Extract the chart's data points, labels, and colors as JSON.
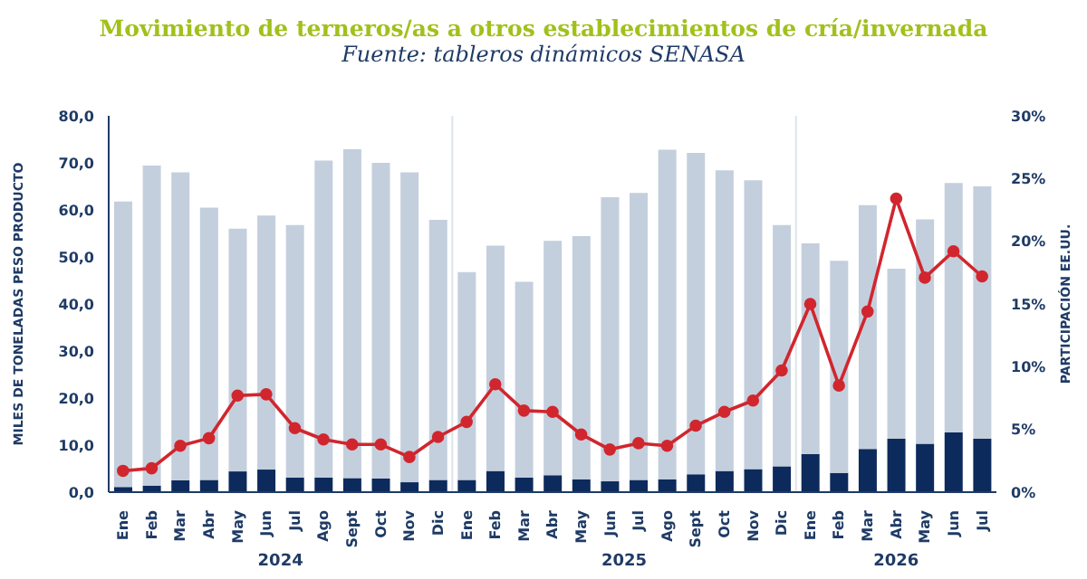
{
  "chart_data": {
    "type": "bar",
    "stacked": true,
    "title": "Movimiento de terneros/as a otros establecimientos de cría/invernada",
    "subtitle": "Fuente: tableros dinámicos SENASA",
    "ylabel": "MILES DE TONELADAS PESO PRODUCTO",
    "y2label": "PARTICIPACIÓN EE.UU.",
    "x": [
      "2024-01",
      "2024-02",
      "2024-03",
      "2024-04",
      "2024-05",
      "2024-06",
      "2024-07",
      "2024-08",
      "2024-09",
      "2024-10",
      "2024-11",
      "2024-12",
      "2025-01",
      "2025-02",
      "2025-03",
      "2025-04",
      "2025-05",
      "2025-06",
      "2025-07",
      "2025-08",
      "2025-09",
      "2025-10",
      "2025-11",
      "2025-12",
      "2026-01",
      "2026-02",
      "2026-03",
      "2026-04",
      "2026-05",
      "2026-06",
      "2026-07"
    ],
    "xlim": [
      "2023-12-16",
      "2026-07-16"
    ],
    "xticks": [
      {
        "value": "2024-01",
        "label": "Ene"
      },
      {
        "value": "2024-02",
        "label": "Feb"
      },
      {
        "value": "2024-03",
        "label": "Mar"
      },
      {
        "value": "2024-04",
        "label": "Abr"
      },
      {
        "value": "2024-05",
        "label": "May"
      },
      {
        "value": "2024-06",
        "label": "Jun"
      },
      {
        "value": "2024-07",
        "label": "Jul"
      },
      {
        "value": "2024-08",
        "label": "Ago"
      },
      {
        "value": "2024-09",
        "label": "Sept"
      },
      {
        "value": "2024-10",
        "label": "Oct"
      },
      {
        "value": "2024-11",
        "label": "Nov"
      },
      {
        "value": "2024-12",
        "label": "Dic"
      },
      {
        "value": "2025-01",
        "label": "Ene"
      },
      {
        "value": "2025-02",
        "label": "Feb"
      },
      {
        "value": "2025-03",
        "label": "Mar"
      },
      {
        "value": "2025-04",
        "label": "Abr"
      },
      {
        "value": "2025-05",
        "label": "May"
      },
      {
        "value": "2025-06",
        "label": "Jun"
      },
      {
        "value": "2025-07",
        "label": "Jul"
      },
      {
        "value": "2025-08",
        "label": "Ago"
      },
      {
        "value": "2025-09",
        "label": "Sept"
      },
      {
        "value": "2025-10",
        "label": "Oct"
      },
      {
        "value": "2025-11",
        "label": "Nov"
      },
      {
        "value": "2025-12",
        "label": "Dic"
      },
      {
        "value": "2026-01",
        "label": "Ene"
      },
      {
        "value": "2026-02",
        "label": "Feb"
      },
      {
        "value": "2026-03",
        "label": "Mar"
      },
      {
        "value": "2026-04",
        "label": "Abr"
      },
      {
        "value": "2026-05",
        "label": "May"
      },
      {
        "value": "2026-06",
        "label": "Jun"
      },
      {
        "value": "2026-07",
        "label": "Jul"
      }
    ],
    "ylim": [
      0,
      80
    ],
    "yticks": [
      {
        "value": 0,
        "label": "0,0"
      },
      {
        "value": 10,
        "label": "10,0"
      },
      {
        "value": 20,
        "label": "20,0"
      },
      {
        "value": 30,
        "label": "30,0"
      },
      {
        "value": 40,
        "label": "40,0"
      },
      {
        "value": 50,
        "label": "50,0"
      },
      {
        "value": 60,
        "label": "60,0"
      },
      {
        "value": 70,
        "label": "70,0"
      },
      {
        "value": 80,
        "label": "80,0"
      }
    ],
    "y2lim": [
      0,
      30
    ],
    "y2ticks": [
      {
        "value": 0,
        "label": "0%"
      },
      {
        "value": 5,
        "label": "5%"
      },
      {
        "value": 10,
        "label": "10%"
      },
      {
        "value": 15,
        "label": "15%"
      },
      {
        "value": 20,
        "label": "20%"
      },
      {
        "value": 25,
        "label": "25%"
      },
      {
        "value": 30,
        "label": "30%"
      }
    ],
    "series": [
      {
        "color": "#0d2a5c",
        "values": [
          1.1,
          1.4,
          2.5,
          2.6,
          4.4,
          4.8,
          3.1,
          3.1,
          3.0,
          2.9,
          2.1,
          2.6,
          2.6,
          4.5,
          3.1,
          3.6,
          2.7,
          2.3,
          2.6,
          2.7,
          3.8,
          4.5,
          4.9,
          5.5,
          8.1,
          4.1,
          9.2,
          11.4,
          10.3,
          12.7,
          11.4
        ]
      },
      {
        "color": "#c4cfdd",
        "values": [
          60.7,
          68.0,
          65.5,
          57.9,
          51.6,
          54.0,
          53.7,
          67.4,
          69.9,
          67.1,
          65.9,
          55.3,
          44.2,
          47.9,
          41.6,
          49.8,
          51.7,
          60.4,
          61.0,
          70.1,
          68.3,
          63.9,
          61.4,
          51.3,
          44.8,
          45.1,
          51.8,
          36.1,
          47.7,
          53.0,
          53.6
        ]
      },
      {
        "type": "line",
        "axis": "y2",
        "color": "#d1262e",
        "marker": "circle",
        "values": [
          1.7,
          1.9,
          3.7,
          4.3,
          7.7,
          7.8,
          5.1,
          4.2,
          3.8,
          3.8,
          2.8,
          4.4,
          5.6,
          8.6,
          6.5,
          6.4,
          4.6,
          3.4,
          3.9,
          3.7,
          5.3,
          6.4,
          7.3,
          9.7,
          15.0,
          8.5,
          14.4,
          23.4,
          17.1,
          19.2,
          17.2
        ]
      }
    ],
    "annotations": [
      "2024",
      "2025",
      "2026"
    ],
    "ref_lines": [
      {
        "axis": "x",
        "value": "2024-12-16",
        "color": "#dde3ea"
      },
      {
        "axis": "x",
        "value": "2025-12-16",
        "color": "#dde3ea"
      }
    ],
    "grid": false
  }
}
